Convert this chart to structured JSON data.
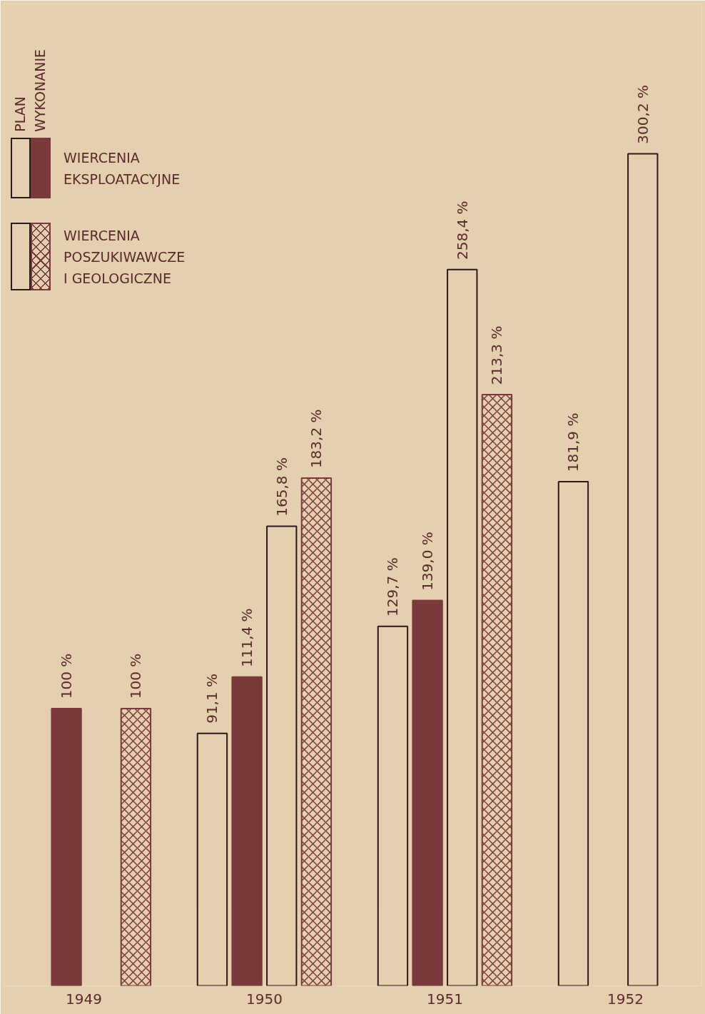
{
  "chart_data": {
    "type": "bar",
    "categories": [
      "1949",
      "1950",
      "1951",
      "1952"
    ],
    "series": [
      {
        "color": "#e4cfae",
        "values": [
          null,
          91.1,
          129.7,
          181.9
        ],
        "value_labels": [
          null,
          "91,1 %",
          "129,7 %",
          "181,9 %"
        ]
      },
      {
        "color": "#7a3a3c",
        "values": [
          100,
          111.4,
          139.0,
          null
        ],
        "value_labels": [
          "100 %",
          "111,4 %",
          "139,0 %",
          null
        ]
      },
      {
        "color": "#e4cfae",
        "values": [
          null,
          165.8,
          258.4,
          300.2
        ],
        "value_labels": [
          null,
          "165,8 %",
          "258,4 %",
          "300,2 %"
        ]
      },
      {
        "color": "#7a3a3c",
        "values": [
          100,
          183.2,
          213.3,
          null
        ],
        "value_labels": [
          "100 %",
          "183,2 %",
          "213,3 %",
          null
        ]
      }
    ],
    "tick_labels": "x",
    "grid": false,
    "annotations": [
      "PLAN",
      "WYKONANIE",
      "WIERCENIA EKSPLOATACYJNE",
      "WIERCENIA POSZUKIWAWCZE I GEOLOGICZNE"
    ]
  }
}
